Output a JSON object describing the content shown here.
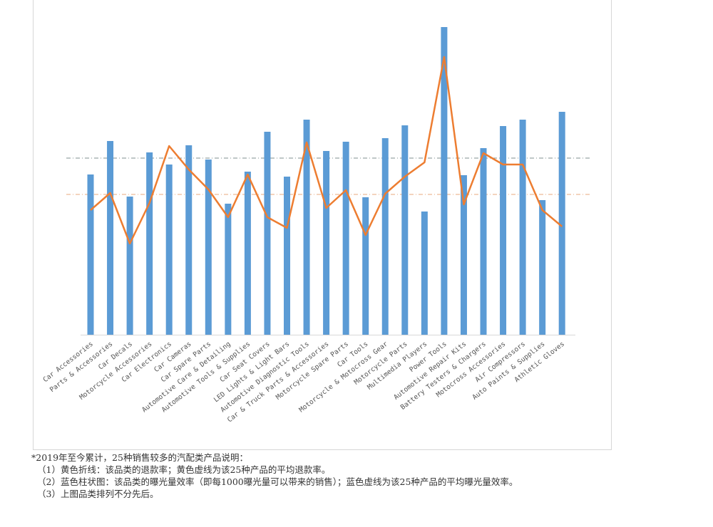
{
  "chart_data": {
    "type": "bar",
    "categories": [
      "Car Accessories",
      "Parts & Accessories",
      "Car Decals",
      "Motorcycle Accessories",
      "Car Electronics",
      "Car Cameras",
      "Car Spare Parts",
      "Automotive Care & Detailing",
      "Automotive Tools & Supplies",
      "Car Seat Covers",
      "LED Lights & Light Bars",
      "Automotive Diagnostic Tools",
      "Car & Truck Parts & Accessories",
      "Motorcycle Spare Parts",
      "Car Tools",
      "Motorcycle & Motocross Gear",
      "Motorcycle Parts",
      "Multimedia Players",
      "Power Tools",
      "Automotive Repair Kits",
      "Battery Testers & Chargers",
      "Motocross Accessories",
      "Air Compressors",
      "Auto Paints & Supplies",
      "Athletic Gloves"
    ],
    "series": [
      {
        "values": [
          225,
          272,
          194,
          256,
          239,
          266,
          246,
          184,
          229,
          285,
          222,
          302,
          258,
          271,
          193,
          276,
          294,
          173,
          432,
          224,
          262,
          293,
          302,
          189,
          313
        ],
        "color": "#5b9bd5",
        "kind": "bar"
      },
      {
        "values": [
          175,
          199,
          128,
          185,
          265,
          232,
          204,
          165,
          225,
          165,
          150,
          270,
          178,
          203,
          140,
          198,
          222,
          242,
          390,
          183,
          255,
          239,
          239,
          175,
          152
        ],
        "color": "#ed7d31",
        "kind": "line"
      }
    ],
    "ylim": [
      0,
      470
    ],
    "reference_lines": [
      {
        "value": 248,
        "color": "#7f8f8f",
        "style": "dash-dot"
      },
      {
        "value": 197,
        "color": "#e9a87c",
        "style": "dash-dot"
      }
    ],
    "grid": false,
    "legend": "none"
  },
  "notes": {
    "line1": "*2019年至今累计，25种销售较多的汽配类产品说明：",
    "line2": "（1）黄色折线：该品类的退款率；黄色虚线为该25种产品的平均退款率。",
    "line3": "（2）蓝色柱状图：该品类的曝光量效率（即每1000曝光量可以带来的销售）；蓝色虚线为该25种产品的平均曝光量效率。",
    "line4": "（3）上图品类排列不分先后。"
  }
}
